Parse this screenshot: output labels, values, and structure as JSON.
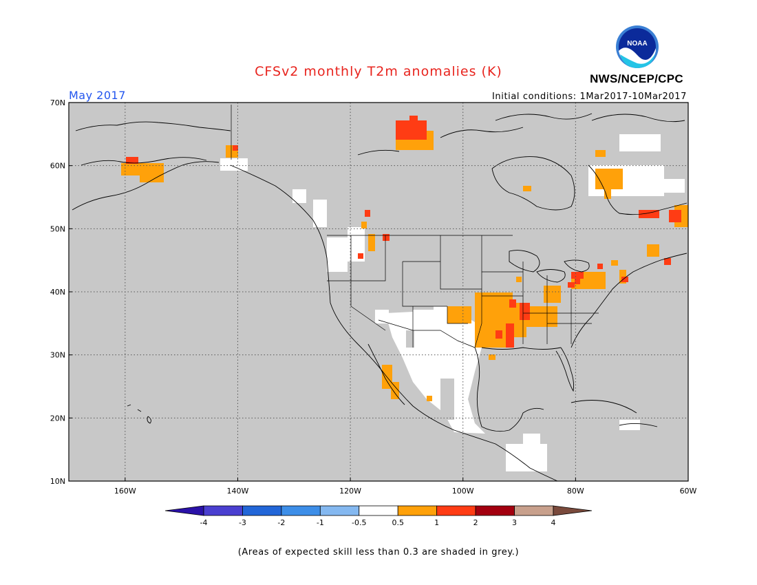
{
  "title": "CFSv2 monthly T2m anomalies (K)",
  "month_label": "May 2017",
  "initial_conditions": "Initial conditions: 1Mar2017-10Mar2017",
  "agency": "NWS/NCEP/CPC",
  "logo_text": "NOAA",
  "footnote": "(Areas of expected skill less than 0.3 are shaded in grey.)",
  "map": {
    "lon_range": [
      -170,
      -60
    ],
    "lat_range": [
      10,
      70
    ],
    "lon_ticks": [
      {
        "value": -160,
        "label": "160W"
      },
      {
        "value": -140,
        "label": "140W"
      },
      {
        "value": -120,
        "label": "120W"
      },
      {
        "value": -100,
        "label": "100W"
      },
      {
        "value": -80,
        "label": "80W"
      },
      {
        "value": -60,
        "label": "60W"
      }
    ],
    "lat_ticks": [
      {
        "value": 10,
        "label": "10N"
      },
      {
        "value": 20,
        "label": "20N"
      },
      {
        "value": 30,
        "label": "30N"
      },
      {
        "value": 40,
        "label": "40N"
      },
      {
        "value": 50,
        "label": "50N"
      },
      {
        "value": 60,
        "label": "60N"
      },
      {
        "value": 70,
        "label": "70N"
      }
    ],
    "grid": true,
    "background_color": "#c8c8c8"
  },
  "colorbar": {
    "labels": [
      "-4",
      "-3",
      "-2",
      "-1",
      "-0.5",
      "0.5",
      "1",
      "2",
      "3",
      "4"
    ],
    "colors": [
      "#2a11a8",
      "#4a3fd0",
      "#2266d8",
      "#3d8ee8",
      "#84b8f0",
      "#ffffff",
      "#ffa10a",
      "#ff3c14",
      "#a3000f",
      "#c8a08c",
      "#7a4a3c"
    ]
  },
  "chart_data": {
    "type": "heatmap",
    "title": "CFSv2 monthly T2m anomalies (K)",
    "subtitle": "May 2017",
    "units": "K",
    "x_axis": "longitude",
    "y_axis": "latitude",
    "xlim": [
      -170,
      -60
    ],
    "ylim": [
      10,
      70
    ],
    "levels": [
      -4,
      -3,
      -2,
      -1,
      -0.5,
      0.5,
      1,
      2,
      3,
      4
    ],
    "grey_mask": "Areas of expected skill less than 0.3",
    "regions": [
      {
        "name": "western Alaska",
        "lon": [
          -160.5,
          -154
        ],
        "lat": [
          58.2,
          61
        ],
        "class": "0.5 to 1"
      },
      {
        "name": "western Alaska core",
        "lon": [
          -160.5,
          -158
        ],
        "lat": [
          60,
          61.2
        ],
        "class": "1 to 2"
      },
      {
        "name": "Yukon border",
        "lon": [
          -141,
          -139.5
        ],
        "lat": [
          61.5,
          63.2
        ],
        "class": "0.5 to 1"
      },
      {
        "name": "northern Canada",
        "lon": [
          -111,
          -105
        ],
        "lat": [
          63.8,
          67
        ],
        "class": "0.5 to 1"
      },
      {
        "name": "northern Canada core",
        "lon": [
          -111,
          -107
        ],
        "lat": [
          64.8,
          67
        ],
        "class": "1 to 2"
      },
      {
        "name": "southern Plains",
        "lon": [
          -97,
          -90
        ],
        "lat": [
          30.5,
          39
        ],
        "class": "0.5 to 1"
      },
      {
        "name": "lower Mississippi",
        "lon": [
          -92,
          -90
        ],
        "lat": [
          31,
          36
        ],
        "class": "1 to 2"
      },
      {
        "name": "Ohio Valley",
        "lon": [
          -90,
          -84
        ],
        "lat": [
          34.5,
          40
        ],
        "class": "0.5 to 1"
      },
      {
        "name": "Baja California",
        "lon": [
          -113,
          -110
        ],
        "lat": [
          23,
          27
        ],
        "class": "0.5 to 1"
      },
      {
        "name": "northern Quebec",
        "lon": [
          -76,
          -71
        ],
        "lat": [
          56,
          60
        ],
        "class": "0.5 to 1"
      },
      {
        "name": "Labrador coast",
        "lon": [
          -67,
          -60
        ],
        "lat": [
          50,
          53
        ],
        "class": "1 to 2"
      },
      {
        "name": "Mexico and Southwest",
        "lon": [
          -115,
          -95
        ],
        "lat": [
          16,
          37
        ],
        "class": "-0.5 to 0.5"
      }
    ]
  }
}
